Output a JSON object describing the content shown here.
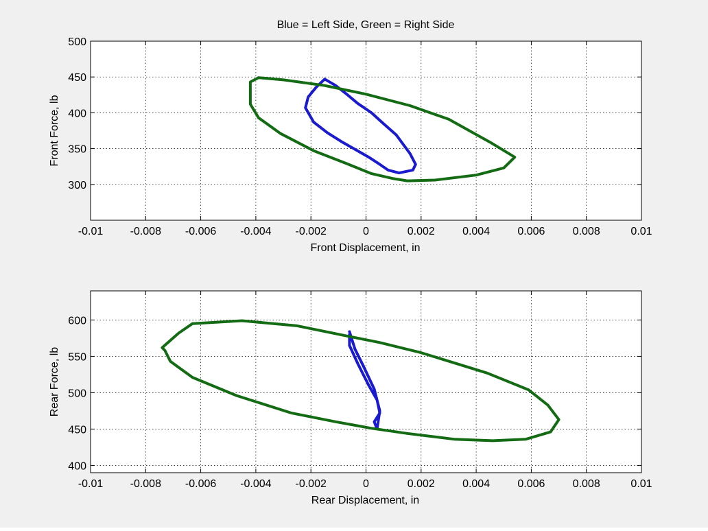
{
  "figure_title": "Blue = Left Side, Green = Right Side",
  "colors": {
    "left_series": "#1a1ad0",
    "right_series": "#136b13",
    "axes_bg": "#ffffff",
    "figure_bg": "#f0f0f0"
  },
  "chart_data": [
    {
      "type": "line",
      "title": "Blue = Left Side, Green = Right Side",
      "xlabel": "Front Displacement, in",
      "ylabel": "Front Force, lb",
      "xlim": [
        -0.01,
        0.01
      ],
      "ylim": [
        250,
        500
      ],
      "xticks": [
        "-0.01",
        "-0.008",
        "-0.006",
        "-0.004",
        "-0.002",
        "0",
        "0.002",
        "0.004",
        "0.006",
        "0.008",
        "0.01"
      ],
      "yticks": [
        "300",
        "350",
        "400",
        "450",
        "500"
      ],
      "xtick_values": [
        -0.01,
        -0.008,
        -0.006,
        -0.004,
        -0.002,
        0,
        0.002,
        0.004,
        0.006,
        0.008,
        0.01
      ],
      "ytick_values": [
        300,
        350,
        400,
        450,
        500
      ],
      "grid": true,
      "series": [
        {
          "color": "blue",
          "x": [
            -0.0015,
            -0.0011,
            -0.0007,
            -0.0003,
            0.0002,
            0.0006,
            0.0011,
            0.0016,
            0.0018,
            0.0017,
            0.0012,
            0.0008,
            0.0005,
            0.0001,
            -0.0004,
            -0.0009,
            -0.0014,
            -0.0019,
            -0.0022,
            -0.0021,
            -0.0018,
            -0.0015
          ],
          "y": [
            447,
            438,
            426,
            413,
            400,
            386,
            369,
            343,
            328,
            320,
            316,
            320,
            328,
            338,
            349,
            360,
            372,
            387,
            407,
            422,
            436,
            447
          ]
        },
        {
          "color": "green",
          "x": [
            -0.0039,
            -0.003,
            -0.0015,
            0.0,
            0.0016,
            0.003,
            0.0045,
            0.0054,
            0.005,
            0.004,
            0.0025,
            0.0015,
            0.001,
            0.0002,
            -0.0007,
            -0.0019,
            -0.0031,
            -0.0039,
            -0.0042,
            -0.0042,
            -0.0042,
            -0.0039
          ],
          "y": [
            449,
            446,
            438,
            426,
            410,
            391,
            359,
            338,
            323,
            313,
            306,
            305,
            308,
            315,
            329,
            347,
            371,
            393,
            412,
            428,
            443,
            449
          ]
        }
      ]
    },
    {
      "type": "line",
      "title": "",
      "xlabel": "Rear Displacement, in",
      "ylabel": "Rear Force, lb",
      "xlim": [
        -0.01,
        0.01
      ],
      "ylim": [
        390,
        640
      ],
      "xticks": [
        "-0.01",
        "-0.008",
        "-0.006",
        "-0.004",
        "-0.002",
        "0",
        "0.002",
        "0.004",
        "0.006",
        "0.008",
        "0.01"
      ],
      "yticks": [
        "400",
        "450",
        "500",
        "550",
        "600"
      ],
      "xtick_values": [
        -0.01,
        -0.008,
        -0.006,
        -0.004,
        -0.002,
        0,
        0.002,
        0.004,
        0.006,
        0.008,
        0.01
      ],
      "ytick_values": [
        400,
        450,
        500,
        550,
        600
      ],
      "grid": true,
      "series": [
        {
          "color": "blue",
          "x": [
            -0.0006,
            -0.0004,
            -0.0001,
            0.0003,
            0.0005,
            0.0004,
            0.0003,
            0.0005,
            0.0004,
            0.0001,
            -0.0003,
            -0.0006,
            -0.0006
          ],
          "y": [
            584,
            560,
            537,
            505,
            475,
            450,
            460,
            472,
            490,
            510,
            540,
            565,
            580
          ]
        },
        {
          "color": "green",
          "x": [
            -0.0063,
            -0.0045,
            -0.0025,
            -0.0007,
            0.0005,
            0.002,
            0.0044,
            0.0059,
            0.0066,
            0.007,
            0.0067,
            0.0058,
            0.0046,
            0.0032,
            0.0015,
            0.0002,
            -0.0011,
            -0.0027,
            -0.0047,
            -0.0063,
            -0.0071,
            -0.0073,
            -0.0074,
            -0.0068,
            -0.0063
          ],
          "y": [
            595,
            599,
            592,
            578,
            569,
            555,
            527,
            504,
            483,
            463,
            446,
            436,
            434,
            436,
            444,
            451,
            460,
            472,
            496,
            521,
            543,
            558,
            562,
            582,
            595
          ]
        }
      ]
    }
  ]
}
